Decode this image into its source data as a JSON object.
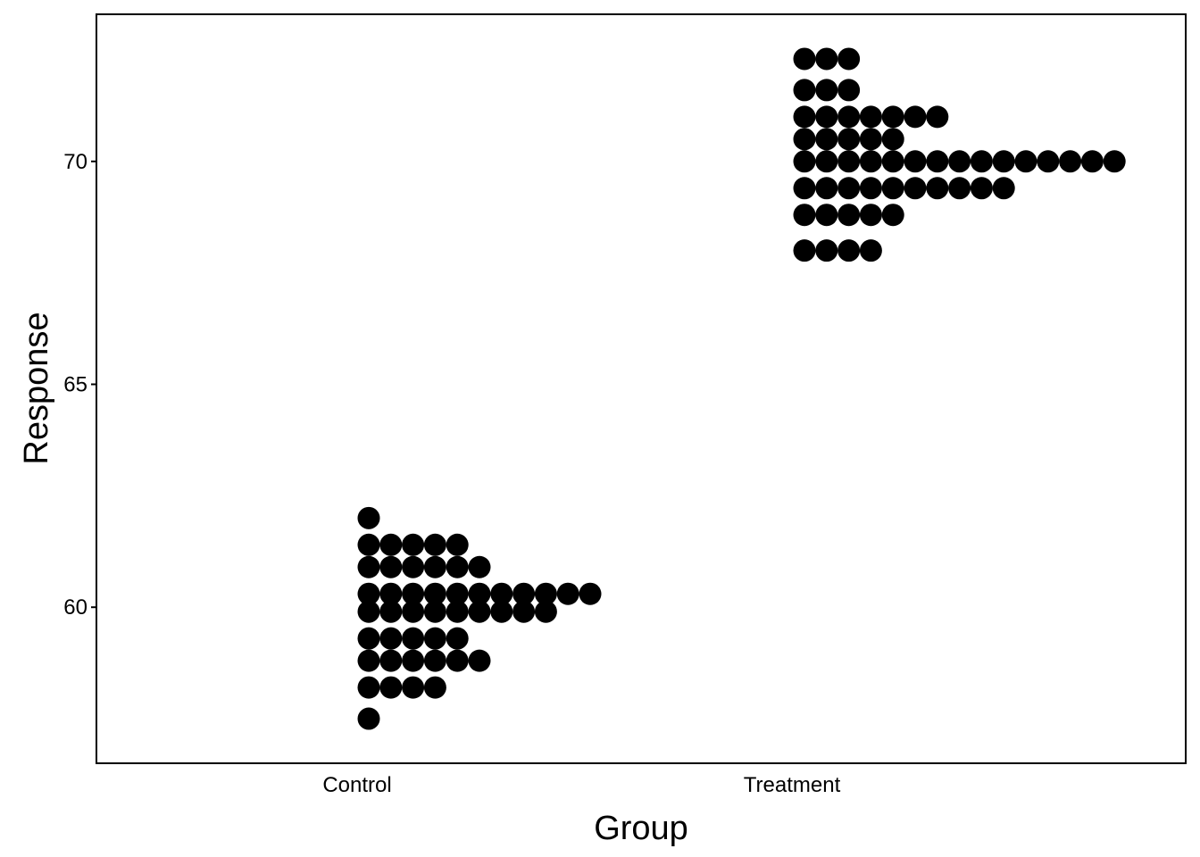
{
  "chart_data": {
    "type": "dotplot",
    "xlabel": "Group",
    "ylabel": "Response",
    "categories": [
      "Control",
      "Treatment"
    ],
    "ylim": [
      56.5,
      73.3
    ],
    "yticks": [
      60,
      65,
      70
    ],
    "grid": false,
    "legend": "none",
    "dot_color": "#000000",
    "groups": [
      {
        "name": "Control",
        "bins": [
          {
            "y": 62.0,
            "count": 1
          },
          {
            "y": 61.4,
            "count": 5
          },
          {
            "y": 60.9,
            "count": 6
          },
          {
            "y": 60.3,
            "count": 11
          },
          {
            "y": 59.9,
            "count": 9
          },
          {
            "y": 59.3,
            "count": 5
          },
          {
            "y": 58.8,
            "count": 6
          },
          {
            "y": 58.2,
            "count": 4
          },
          {
            "y": 57.5,
            "count": 1
          }
        ]
      },
      {
        "name": "Treatment",
        "bins": [
          {
            "y": 72.3,
            "count": 3
          },
          {
            "y": 71.6,
            "count": 3
          },
          {
            "y": 71.0,
            "count": 7
          },
          {
            "y": 70.5,
            "count": 5
          },
          {
            "y": 70.0,
            "count": 15
          },
          {
            "y": 69.4,
            "count": 10
          },
          {
            "y": 68.8,
            "count": 5
          },
          {
            "y": 68.0,
            "count": 4
          }
        ]
      }
    ]
  }
}
